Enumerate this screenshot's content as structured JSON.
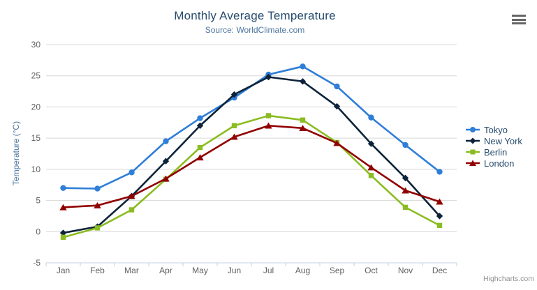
{
  "header": {
    "title": "Monthly Average Temperature",
    "subtitle": "Source: WorldClimate.com"
  },
  "toolbar": {
    "context_menu_icon": "hamburger-menu-icon"
  },
  "credits": {
    "label": "Highcharts.com"
  },
  "colors": {
    "title": "#274b6d",
    "subtitle": "#4d759e",
    "axis_title": "#4d759e",
    "tick_label": "#606060",
    "gridline": "#d8d8d8",
    "axis_line": "#c0d0e0",
    "legend_text": "#274b6d",
    "credits_text": "#909090",
    "menu_icon": "#666666"
  },
  "chart_data": {
    "type": "line",
    "title": "Monthly Average Temperature",
    "subtitle": "Source: WorldClimate.com",
    "categories": [
      "Jan",
      "Feb",
      "Mar",
      "Apr",
      "May",
      "Jun",
      "Jul",
      "Aug",
      "Sep",
      "Oct",
      "Nov",
      "Dec"
    ],
    "xlabel": "",
    "ylabel": "Temperature (°C)",
    "ylim": [
      -5,
      30
    ],
    "yticks": [
      -5,
      0,
      5,
      10,
      15,
      20,
      25,
      30
    ],
    "grid": "horizontal",
    "legend_position": "right",
    "series": [
      {
        "name": "Tokyo",
        "color": "#2f7ed8",
        "marker": "circle",
        "values": [
          7.0,
          6.9,
          9.5,
          14.5,
          18.2,
          21.5,
          25.2,
          26.5,
          23.3,
          18.3,
          13.9,
          9.6
        ]
      },
      {
        "name": "New York",
        "color": "#0d233a",
        "marker": "diamond",
        "values": [
          -0.2,
          0.8,
          5.7,
          11.3,
          17.0,
          22.0,
          24.8,
          24.1,
          20.1,
          14.1,
          8.6,
          2.5
        ]
      },
      {
        "name": "Berlin",
        "color": "#8bbc21",
        "marker": "square",
        "values": [
          -0.9,
          0.6,
          3.5,
          8.4,
          13.5,
          17.0,
          18.6,
          17.9,
          14.3,
          9.0,
          3.9,
          1.0
        ]
      },
      {
        "name": "London",
        "color": "#910000",
        "marker": "triangle",
        "values": [
          3.9,
          4.2,
          5.7,
          8.5,
          11.9,
          15.2,
          17.0,
          16.6,
          14.2,
          10.3,
          6.6,
          4.8
        ]
      }
    ]
  }
}
